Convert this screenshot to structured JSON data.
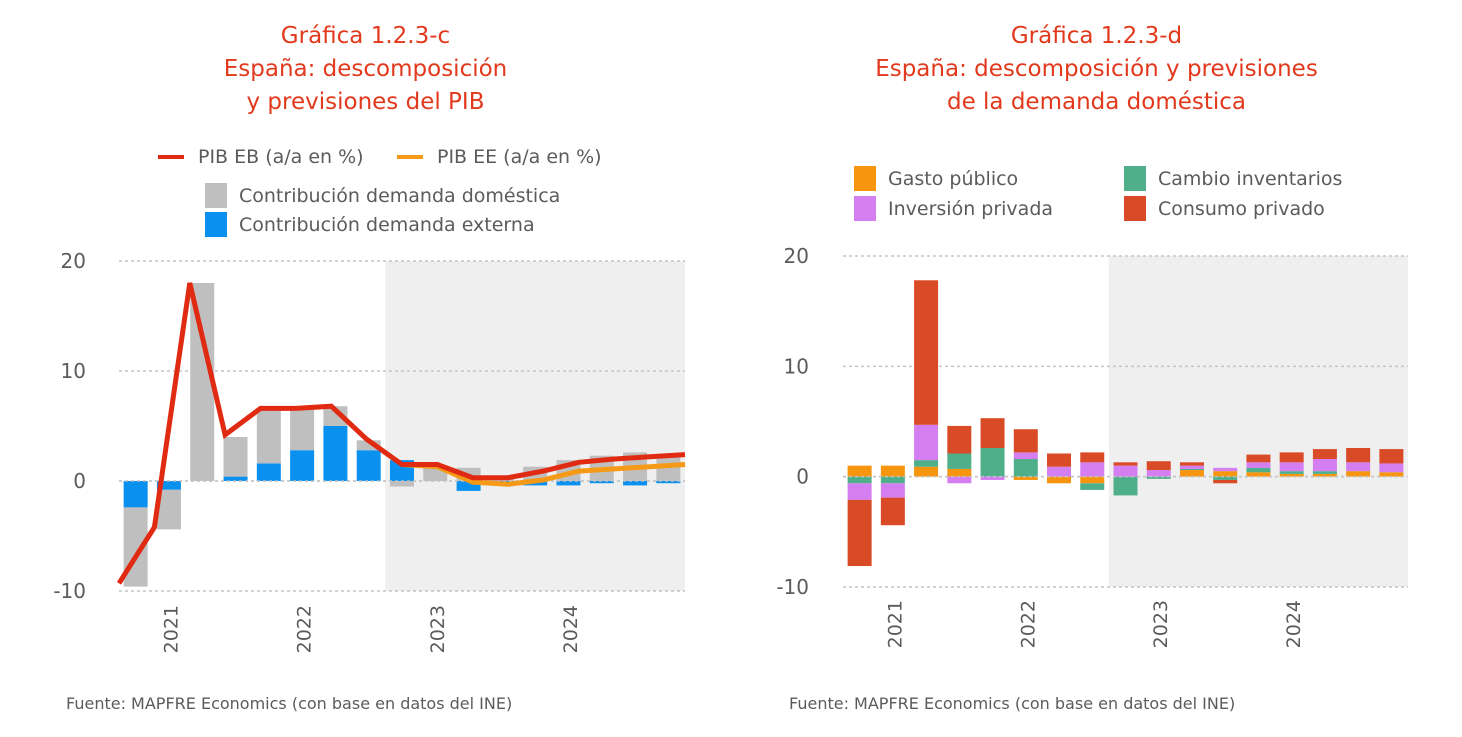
{
  "chart_data": [
    {
      "id": "c",
      "type": "bar",
      "title": [
        "Gráfica 1.2.3-c",
        "España: descomposición",
        "y previsiones del PIB"
      ],
      "xlabel": "",
      "ylabel": "",
      "ylim": [
        -10,
        20
      ],
      "yticks": [
        20,
        10,
        0,
        -10
      ],
      "grid": true,
      "year_labels": [
        "2021",
        "2022",
        "2023",
        "2024"
      ],
      "categories": [
        "2021-Q1",
        "2021-Q2",
        "2021-Q3",
        "2021-Q4",
        "2022-Q1",
        "2022-Q2",
        "2022-Q3",
        "2022-Q4",
        "2023-Q1",
        "2023-Q2",
        "2023-Q3",
        "2023-Q4",
        "2024-Q1",
        "2024-Q2",
        "2024-Q3",
        "2024-Q4",
        "2025-Q1"
      ],
      "forecast_start_index": 8,
      "stacked": true,
      "series": [
        {
          "name": "Contribución demanda externa",
          "kind": "bar",
          "color": "#0a91f0",
          "values": [
            -2.4,
            -0.8,
            0.0,
            0.4,
            1.6,
            2.8,
            5.0,
            2.8,
            1.9,
            0.0,
            -0.9,
            -0.1,
            -0.4,
            -0.4,
            -0.2,
            -0.4,
            -0.2
          ]
        },
        {
          "name": "Contribución demanda doméstica",
          "kind": "bar",
          "color": "#bfbfbf",
          "values": [
            -7.2,
            -3.6,
            18.0,
            3.6,
            4.9,
            3.8,
            1.8,
            0.9,
            -0.5,
            1.3,
            1.2,
            0.3,
            1.3,
            1.9,
            2.3,
            2.6,
            2.3
          ]
        },
        {
          "name": "PIB EB (a/a en %)",
          "kind": "line",
          "color": "#e02a12",
          "values": [
            -9.3,
            -4.2,
            18.0,
            4.2,
            6.6,
            6.6,
            6.8,
            3.8,
            1.5,
            1.5,
            0.3,
            0.3,
            0.9,
            1.7,
            2.0,
            2.2,
            2.4
          ]
        },
        {
          "name": "PIB EE (a/a en %)",
          "kind": "line",
          "color": "#f59a16",
          "values": [
            null,
            null,
            null,
            null,
            null,
            null,
            null,
            null,
            1.5,
            1.3,
            -0.1,
            -0.3,
            0.1,
            0.9,
            1.1,
            1.3,
            1.5
          ]
        }
      ],
      "legend": {
        "lines": [
          "PIB EB (a/a en %)",
          "PIB EE (a/a en %)"
        ],
        "boxes": [
          "Contribución demanda doméstica",
          "Contribución demanda externa"
        ],
        "placement": "top"
      },
      "source": "Fuente: MAPFRE Economics (con base en datos del INE)"
    },
    {
      "id": "d",
      "type": "bar",
      "title": [
        "Gráfica 1.2.3-d",
        "España: descomposición y previsiones",
        "de la demanda doméstica"
      ],
      "xlabel": "",
      "ylabel": "",
      "ylim": [
        -10,
        20
      ],
      "yticks": [
        20,
        10,
        0,
        -10
      ],
      "grid": true,
      "year_labels": [
        "2021",
        "2022",
        "2023",
        "2024"
      ],
      "categories": [
        "2021-Q1",
        "2021-Q2",
        "2021-Q3",
        "2021-Q4",
        "2022-Q1",
        "2022-Q2",
        "2022-Q3",
        "2022-Q4",
        "2023-Q1",
        "2023-Q2",
        "2023-Q3",
        "2023-Q4",
        "2024-Q1",
        "2024-Q2",
        "2024-Q3",
        "2024-Q4",
        "2025-Q1"
      ],
      "forecast_start_index": 8,
      "stacked": true,
      "series": [
        {
          "name": "Gasto público",
          "color": "#f7960e",
          "values": [
            1.0,
            1.0,
            0.9,
            0.7,
            0.0,
            -0.3,
            -0.6,
            -0.6,
            0.0,
            0.0,
            0.6,
            0.5,
            0.4,
            0.25,
            0.25,
            0.5,
            0.4
          ]
        },
        {
          "name": "Cambio inventarios",
          "color": "#4faf8a",
          "values": [
            -0.6,
            -0.6,
            0.6,
            1.4,
            2.6,
            1.6,
            0.0,
            -0.6,
            -1.7,
            -0.2,
            0.1,
            -0.3,
            0.4,
            0.25,
            0.25,
            0.0,
            0.0
          ]
        },
        {
          "name": "Inversión privada",
          "color": "#d47ef2",
          "values": [
            -1.5,
            -1.3,
            3.2,
            -0.6,
            -0.3,
            0.6,
            0.9,
            1.3,
            1.0,
            0.6,
            0.3,
            0.3,
            0.5,
            0.8,
            1.1,
            0.8,
            0.8
          ]
        },
        {
          "name": "Consumo privado",
          "color": "#d94a26",
          "values": [
            -6.0,
            -2.5,
            13.1,
            2.5,
            2.7,
            2.1,
            1.2,
            0.9,
            0.3,
            0.8,
            0.3,
            -0.3,
            0.7,
            0.9,
            0.9,
            1.3,
            1.3
          ]
        }
      ],
      "legend": {
        "items": [
          "Gasto público",
          "Cambio inventarios",
          "Inversión privada",
          "Consumo privado"
        ],
        "placement": "top"
      },
      "source": "Fuente: MAPFRE Economics (con base en datos del INE)"
    }
  ],
  "colors": {
    "title": "#e2391c",
    "forecast_shade": "#efefef",
    "grid": "#c4c4c4",
    "text": "#5b5b5b"
  }
}
